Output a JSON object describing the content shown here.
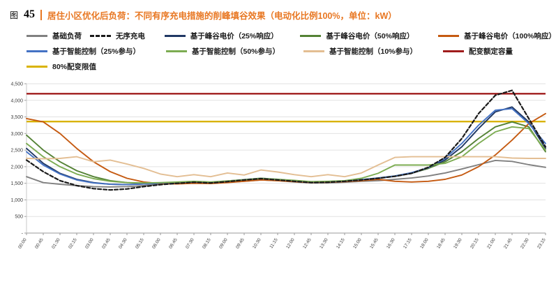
{
  "header": {
    "figure_prefix": "图",
    "figure_number": "45",
    "title": "居住小区优化后负荷：不同有序充电措施的削峰填谷效果（电动化比例100%，单位：kW）",
    "title_color": "#E87722"
  },
  "chart_data": {
    "type": "line",
    "title": "居住小区优化后负荷：不同有序充电措施的削峰填谷效果",
    "unit": "kW",
    "xlabel": "",
    "ylabel": "",
    "ylim": [
      0,
      4500
    ],
    "grid": true,
    "legend_position": "top",
    "yticks": [
      {
        "v": 0,
        "label": "-"
      },
      {
        "v": 500,
        "label": "500"
      },
      {
        "v": 1000,
        "label": "1,000"
      },
      {
        "v": 1500,
        "label": "1,500"
      },
      {
        "v": 2000,
        "label": "2,000"
      },
      {
        "v": 2500,
        "label": "2,500"
      },
      {
        "v": 3000,
        "label": "3,000"
      },
      {
        "v": 3500,
        "label": "3,500"
      },
      {
        "v": 4000,
        "label": "4,000"
      },
      {
        "v": 4500,
        "label": "4,500"
      }
    ],
    "categories": [
      "00:00",
      "00:45",
      "01:30",
      "02:15",
      "03:00",
      "03:45",
      "04:30",
      "05:15",
      "06:00",
      "06:45",
      "07:30",
      "08:15",
      "09:00",
      "09:45",
      "10:30",
      "11:15",
      "12:00",
      "12:45",
      "13:30",
      "14:15",
      "15:00",
      "15:45",
      "16:30",
      "17:15",
      "18:00",
      "18:45",
      "19:30",
      "20:15",
      "21:00",
      "21:45",
      "22:30",
      "23:15"
    ],
    "series": [
      {
        "name": "基础负荷",
        "color": "#808080",
        "legend_row": 1,
        "values": [
          1700,
          1520,
          1470,
          1430,
          1400,
          1390,
          1400,
          1430,
          1470,
          1500,
          1520,
          1500,
          1530,
          1560,
          1600,
          1580,
          1540,
          1510,
          1510,
          1530,
          1560,
          1580,
          1620,
          1660,
          1720,
          1810,
          1930,
          2060,
          2190,
          2160,
          2060,
          1980
        ]
      },
      {
        "name": "无序充电",
        "color": "#1a1a1a",
        "dash": true,
        "legend_row": 1,
        "values": [
          2200,
          1850,
          1580,
          1430,
          1340,
          1300,
          1330,
          1400,
          1460,
          1500,
          1530,
          1510,
          1550,
          1600,
          1640,
          1600,
          1560,
          1520,
          1530,
          1560,
          1600,
          1650,
          1710,
          1800,
          1980,
          2280,
          2850,
          3600,
          4150,
          4300,
          3450,
          2600
        ]
      },
      {
        "name": "基于峰谷电价（25%响应）",
        "color": "#203864",
        "legend_row": 1,
        "values": [
          2550,
          2100,
          1800,
          1620,
          1520,
          1470,
          1460,
          1480,
          1500,
          1520,
          1540,
          1520,
          1560,
          1600,
          1640,
          1610,
          1570,
          1530,
          1540,
          1560,
          1600,
          1650,
          1710,
          1800,
          1950,
          2200,
          2600,
          3150,
          3650,
          3800,
          3350,
          2550
        ]
      },
      {
        "name": "基于峰谷电价（50%响应）",
        "color": "#548235",
        "legend_row": 1,
        "values": [
          2950,
          2500,
          2150,
          1880,
          1700,
          1580,
          1520,
          1500,
          1510,
          1530,
          1550,
          1530,
          1560,
          1600,
          1640,
          1610,
          1580,
          1540,
          1550,
          1570,
          1610,
          1660,
          1720,
          1810,
          1950,
          2150,
          2450,
          2850,
          3200,
          3350,
          3200,
          2450
        ]
      },
      {
        "name": "基于峰谷电价（100%响应）",
        "color": "#C55A11",
        "legend_row": 1,
        "values": [
          3450,
          3350,
          3000,
          2550,
          2150,
          1850,
          1650,
          1540,
          1490,
          1480,
          1500,
          1490,
          1520,
          1560,
          1600,
          1580,
          1550,
          1520,
          1530,
          1550,
          1580,
          1620,
          1560,
          1540,
          1560,
          1620,
          1750,
          2000,
          2350,
          2800,
          3300,
          3600
        ]
      },
      {
        "name": "基于智能控制（25%参与）",
        "color": "#4472C4",
        "legend_row": 2,
        "values": [
          2450,
          2050,
          1780,
          1600,
          1510,
          1470,
          1460,
          1480,
          1510,
          1530,
          1550,
          1530,
          1570,
          1610,
          1650,
          1620,
          1580,
          1540,
          1550,
          1570,
          1610,
          1660,
          1720,
          1820,
          1970,
          2250,
          2700,
          3250,
          3700,
          3750,
          3300,
          2700
        ]
      },
      {
        "name": "基于智能控制（50%参与）",
        "color": "#7CAC52",
        "legend_row": 2,
        "values": [
          2700,
          2300,
          2000,
          1780,
          1640,
          1560,
          1520,
          1510,
          1520,
          1540,
          1560,
          1540,
          1570,
          1610,
          1650,
          1620,
          1590,
          1550,
          1560,
          1580,
          1650,
          1800,
          2050,
          2050,
          2050,
          2100,
          2300,
          2700,
          3050,
          3200,
          3150,
          2500
        ]
      },
      {
        "name": "基于智能控制（10%参与）",
        "color": "#E3BE93",
        "legend_row": 2,
        "values": [
          2250,
          2240,
          2250,
          2300,
          2150,
          2200,
          2080,
          1950,
          1780,
          1700,
          1760,
          1700,
          1810,
          1750,
          1900,
          1840,
          1760,
          1700,
          1760,
          1700,
          1810,
          2050,
          2280,
          2300,
          2300,
          2300,
          2300,
          2300,
          2300,
          2260,
          2250,
          2250
        ]
      },
      {
        "name": "配变额定容量",
        "color": "#A01C1C",
        "legend_row": 2,
        "value": 4200
      },
      {
        "name": "80%配变限值",
        "color": "#D9B300",
        "legend_row": 3,
        "value": 3360
      }
    ]
  }
}
